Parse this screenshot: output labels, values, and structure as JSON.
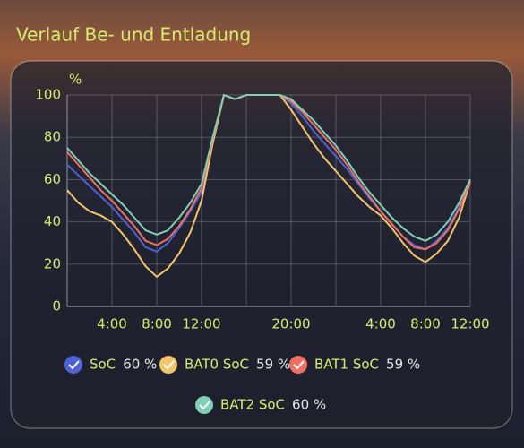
{
  "chart_data": {
    "type": "line",
    "title": "Verlauf Be- und Entladung",
    "y_label": "%",
    "categories": [
      null,
      null,
      null,
      null,
      "4:00",
      null,
      null,
      null,
      "8:00",
      null,
      null,
      null,
      "12:00",
      null,
      null,
      null,
      null,
      null,
      null,
      null,
      "20:00",
      null,
      null,
      null,
      null,
      null,
      null,
      null,
      "4:00",
      null,
      null,
      null,
      "8:00",
      null,
      null,
      null,
      "12:00"
    ],
    "ylim": [
      0,
      100
    ],
    "yticks": [
      0,
      20,
      40,
      60,
      80,
      100
    ],
    "grid": true,
    "series": [
      {
        "name": "SoC",
        "state": "60 %",
        "color": "#4d62d6",
        "values": [
          67,
          62,
          57,
          52,
          47,
          41,
          35,
          28,
          26,
          30,
          37,
          45,
          54,
          78,
          100,
          98,
          100,
          100,
          100,
          100,
          96,
          90,
          83,
          77,
          71,
          65,
          58,
          51,
          45,
          39,
          33,
          29,
          27,
          31,
          37,
          47,
          60
        ]
      },
      {
        "name": "BAT0 SoC",
        "state": "59 %",
        "color": "#f3c56b",
        "values": [
          55,
          49,
          45,
          43,
          40,
          34,
          27,
          19,
          14,
          18,
          25,
          35,
          50,
          77,
          100,
          98,
          100,
          100,
          100,
          100,
          93,
          85,
          77,
          70,
          64,
          58,
          52,
          47,
          43,
          37,
          30,
          24,
          21,
          25,
          31,
          42,
          59
        ]
      },
      {
        "name": "BAT1 SoC",
        "state": "59 %",
        "color": "#ef7062",
        "values": [
          73,
          67,
          61,
          55,
          50,
          44,
          38,
          31,
          29,
          32,
          38,
          46,
          56,
          79,
          100,
          98,
          100,
          100,
          100,
          100,
          97,
          92,
          86,
          80,
          74,
          67,
          59,
          52,
          45,
          39,
          33,
          28,
          27,
          30,
          36,
          46,
          59
        ]
      },
      {
        "name": "BAT2 SoC",
        "state": "60 %",
        "color": "#80d0b6",
        "values": [
          75,
          69,
          63,
          58,
          53,
          48,
          42,
          36,
          34,
          36,
          42,
          49,
          58,
          80,
          100,
          98,
          100,
          100,
          100,
          100,
          98,
          93,
          88,
          82,
          76,
          69,
          61,
          54,
          48,
          42,
          37,
          33,
          31,
          34,
          40,
          49,
          60
        ]
      }
    ]
  }
}
